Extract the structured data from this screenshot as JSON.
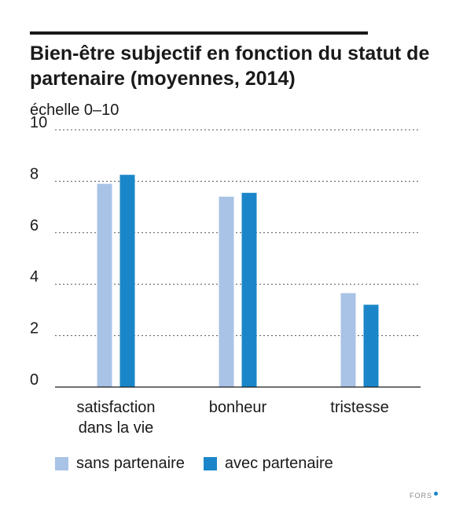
{
  "chart_data": {
    "type": "bar",
    "title": "Bien-être subjectif en fonction du statut de partenaire (moyennes, 2014)",
    "ylabel": "échelle 0–10",
    "ylim": [
      0,
      10
    ],
    "yticks": [
      0,
      2,
      4,
      6,
      8,
      10
    ],
    "grid": "dotted horizontal",
    "categories": [
      {
        "line1": "satisfaction",
        "line2": "dans la vie"
      },
      {
        "line1": "bonheur",
        "line2": ""
      },
      {
        "line1": "tristesse",
        "line2": ""
      }
    ],
    "series": [
      {
        "name": "sans partenaire",
        "color": "#a9c3e6",
        "values": [
          7.9,
          7.4,
          3.65
        ]
      },
      {
        "name": "avec partenaire",
        "color": "#1a86c9",
        "values": [
          8.25,
          7.55,
          3.2
        ]
      }
    ],
    "legend": "bottom"
  },
  "footer": {
    "brand": "FORS"
  }
}
